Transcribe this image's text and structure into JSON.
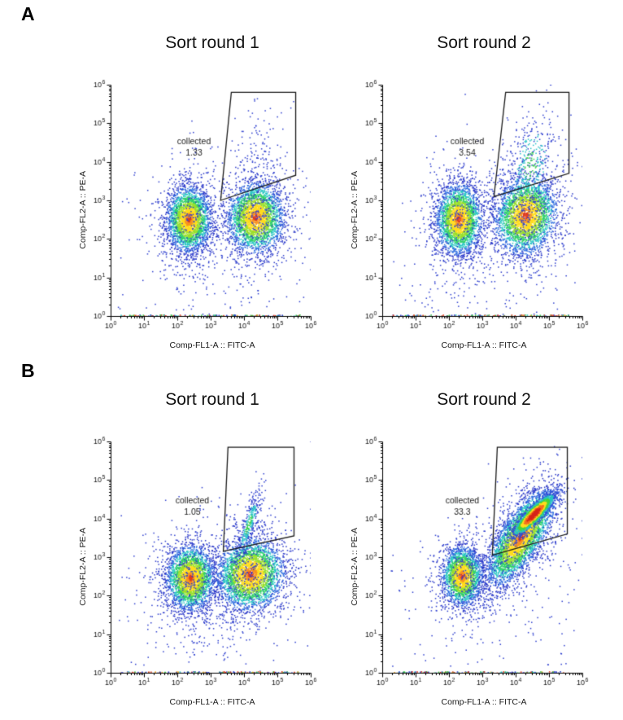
{
  "figure": {
    "background": "#ffffff",
    "gate_color": "#1a1a1a"
  },
  "panels": [
    {
      "letter": "A",
      "plot_ids": [
        0,
        1
      ]
    },
    {
      "letter": "B",
      "plot_ids": [
        2,
        3
      ]
    }
  ],
  "palette": {
    "normal": [
      [
        0.18,
        "#df3a1e"
      ],
      [
        0.4,
        "#f8931f"
      ],
      [
        0.78,
        "#ffdd1d"
      ],
      [
        1.1,
        "#9adf2c"
      ],
      [
        1.4,
        "#30d06a"
      ],
      [
        1.7,
        "#28c6c4"
      ],
      [
        2.05,
        "#2f6fe0"
      ],
      [
        99,
        "#2b38c8"
      ]
    ],
    "hot": [
      [
        0.7,
        "#d6261a"
      ],
      [
        1.0,
        "#f2701f"
      ],
      [
        1.3,
        "#ffdd1d"
      ],
      [
        1.6,
        "#49d53a"
      ],
      [
        1.95,
        "#27c5c1"
      ],
      [
        99,
        "#2f51d8"
      ]
    ],
    "cool": [
      [
        0.5,
        "#3bd14f"
      ],
      [
        1.1,
        "#27c2c9"
      ],
      [
        99,
        "#2e3fcf"
      ]
    ],
    "mono": [
      [
        99,
        "#2e3fcf"
      ]
    ],
    "baseline": [
      "#2e3fcf",
      "#38c24a",
      "#e8a01f",
      "#dd3b1e",
      "#27c5c1",
      "#38c24a",
      "#dd3b1e",
      "#2e3fcf",
      "#38c24a",
      "#2e3fcf"
    ]
  },
  "chart_data": [
    {
      "id": "A1",
      "panel": "A",
      "type": "scatter-density",
      "seed": 11,
      "title": "Sort round 1",
      "xlabel": "Comp-FL1-A :: FITC-A",
      "ylabel": "Comp-FL2-A :: PE-A",
      "x_log_range": [
        0,
        6
      ],
      "y_log_range": [
        0,
        6
      ],
      "gate": {
        "label": "collected",
        "percent": "1.33",
        "vertices": [
          [
            3.3,
            3.0
          ],
          [
            5.55,
            3.65
          ],
          [
            5.55,
            5.8
          ],
          [
            3.62,
            5.8
          ]
        ],
        "label_pos": [
          2.5,
          4.45
        ]
      },
      "clusters": [
        {
          "cx": 2.35,
          "cy": 2.5,
          "sx": 0.33,
          "sy": 0.42,
          "rho": 0,
          "n": 2600,
          "mode": "normal"
        },
        {
          "cx": 2.35,
          "cy": 2.4,
          "sx": 0.55,
          "sy": 0.9,
          "rho": 0,
          "n": 420,
          "mode": "mono"
        },
        {
          "cx": 4.35,
          "cy": 2.55,
          "sx": 0.42,
          "sy": 0.45,
          "rho": 0,
          "n": 2600,
          "mode": "normal"
        },
        {
          "cx": 4.35,
          "cy": 2.6,
          "sx": 0.62,
          "sy": 0.95,
          "rho": 0.1,
          "n": 480,
          "mode": "mono"
        },
        {
          "cx": 4.4,
          "cy": 4.1,
          "sx": 0.33,
          "sy": 0.85,
          "rho": 0.2,
          "n": 120,
          "mode": "mono"
        }
      ],
      "noise": {
        "n": 110,
        "x_range": [
          0.2,
          5.9
        ],
        "y_range": [
          0.15,
          3.2
        ]
      },
      "baseline_events": {
        "n": 140,
        "x_range": [
          0.3,
          5.7
        ]
      }
    },
    {
      "id": "A2",
      "panel": "A",
      "type": "scatter-density",
      "seed": 22,
      "title": "Sort round 2",
      "xlabel": "Comp-FL1-A :: FITC-A",
      "ylabel": "Comp-FL2-A :: PE-A",
      "x_log_range": [
        0,
        6
      ],
      "y_log_range": [
        0,
        6
      ],
      "gate": {
        "label": "collected",
        "percent": "3.54",
        "vertices": [
          [
            3.35,
            3.1
          ],
          [
            5.6,
            3.7
          ],
          [
            5.6,
            5.8
          ],
          [
            3.7,
            5.8
          ]
        ],
        "label_pos": [
          2.55,
          4.45
        ]
      },
      "clusters": [
        {
          "cx": 2.3,
          "cy": 2.5,
          "sx": 0.34,
          "sy": 0.45,
          "rho": 0,
          "n": 2600,
          "mode": "normal"
        },
        {
          "cx": 2.3,
          "cy": 2.4,
          "sx": 0.56,
          "sy": 0.9,
          "rho": 0,
          "n": 430,
          "mode": "mono"
        },
        {
          "cx": 4.3,
          "cy": 2.6,
          "sx": 0.46,
          "sy": 0.5,
          "rho": 0.1,
          "n": 2800,
          "mode": "normal"
        },
        {
          "cx": 4.3,
          "cy": 2.7,
          "sx": 0.66,
          "sy": 1.0,
          "rho": 0.15,
          "n": 560,
          "mode": "mono"
        },
        {
          "cx": 4.45,
          "cy": 3.9,
          "sx": 0.4,
          "sy": 0.75,
          "rho": 0.3,
          "n": 300,
          "mode": "cool"
        }
      ],
      "noise": {
        "n": 110,
        "x_range": [
          0.2,
          5.9
        ],
        "y_range": [
          0.15,
          3.2
        ]
      },
      "baseline_events": {
        "n": 140,
        "x_range": [
          0.3,
          5.7
        ]
      }
    },
    {
      "id": "B1",
      "panel": "B",
      "type": "scatter-density",
      "seed": 33,
      "title": "Sort round 1",
      "xlabel": "Comp-FL1-A :: FITC-A",
      "ylabel": "Comp-FL2-A :: PE-A",
      "x_log_range": [
        0,
        6
      ],
      "y_log_range": [
        0,
        6
      ],
      "gate": {
        "label": "collected",
        "percent": "1.05",
        "vertices": [
          [
            3.38,
            3.15
          ],
          [
            5.5,
            3.55
          ],
          [
            5.5,
            5.85
          ],
          [
            3.52,
            5.85
          ]
        ],
        "label_pos": [
          2.45,
          4.4
        ]
      },
      "clusters": [
        {
          "cx": 2.4,
          "cy": 2.45,
          "sx": 0.36,
          "sy": 0.42,
          "rho": 0,
          "n": 2700,
          "mode": "normal"
        },
        {
          "cx": 2.4,
          "cy": 2.35,
          "sx": 0.58,
          "sy": 0.85,
          "rho": 0,
          "n": 450,
          "mode": "mono"
        },
        {
          "cx": 4.2,
          "cy": 2.55,
          "sx": 0.5,
          "sy": 0.46,
          "rho": 0.05,
          "n": 3000,
          "mode": "normal"
        },
        {
          "cx": 4.2,
          "cy": 2.6,
          "sx": 0.72,
          "sy": 0.92,
          "rho": 0.1,
          "n": 520,
          "mode": "mono"
        },
        {
          "cx": 4.15,
          "cy": 3.85,
          "sx": 0.2,
          "sy": 0.5,
          "rho": 0.85,
          "n": 320,
          "mode": "cool"
        }
      ],
      "noise": {
        "n": 110,
        "x_range": [
          0.2,
          5.9
        ],
        "y_range": [
          0.15,
          3.2
        ]
      },
      "baseline_events": {
        "n": 140,
        "x_range": [
          0.3,
          5.7
        ]
      }
    },
    {
      "id": "B2",
      "panel": "B",
      "type": "scatter-density",
      "seed": 44,
      "title": "Sort round 2",
      "xlabel": "Comp-FL1-A :: FITC-A",
      "ylabel": "Comp-FL2-A :: PE-A",
      "x_log_range": [
        0,
        6
      ],
      "y_log_range": [
        0,
        6
      ],
      "gate": {
        "label": "collected",
        "percent": "33.3",
        "vertices": [
          [
            3.3,
            3.05
          ],
          [
            5.55,
            3.6
          ],
          [
            5.55,
            5.85
          ],
          [
            3.45,
            5.85
          ]
        ],
        "label_pos": [
          2.4,
          4.4
        ]
      },
      "clusters": [
        {
          "cx": 2.4,
          "cy": 2.5,
          "sx": 0.3,
          "sy": 0.38,
          "rho": 0,
          "n": 2100,
          "mode": "normal"
        },
        {
          "cx": 2.4,
          "cy": 2.45,
          "sx": 0.5,
          "sy": 0.7,
          "rho": 0,
          "n": 320,
          "mode": "mono"
        },
        {
          "cx": 4.15,
          "cy": 3.5,
          "sx": 0.5,
          "sy": 0.62,
          "rho": 0.72,
          "n": 3600,
          "mode": "normal"
        },
        {
          "cx": 4.1,
          "cy": 3.4,
          "sx": 0.78,
          "sy": 0.95,
          "rho": 0.5,
          "n": 550,
          "mode": "mono"
        },
        {
          "cx": 4.55,
          "cy": 4.1,
          "sx": 0.3,
          "sy": 0.26,
          "rho": 0.88,
          "n": 2400,
          "mode": "hot"
        }
      ],
      "noise": {
        "n": 120,
        "x_range": [
          0.2,
          5.9
        ],
        "y_range": [
          0.15,
          3.2
        ]
      },
      "baseline_events": {
        "n": 150,
        "x_range": [
          0.3,
          5.7
        ]
      }
    }
  ]
}
